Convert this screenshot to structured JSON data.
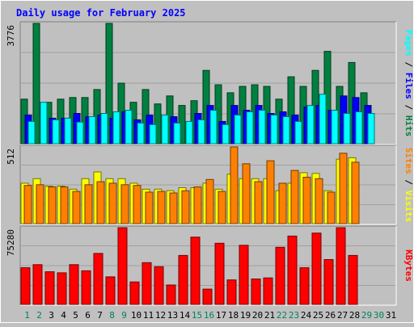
{
  "chart_data": [
    {
      "type": "bar",
      "title": "Daily usage for February 2025",
      "categories": [
        "1",
        "2",
        "3",
        "4",
        "5",
        "6",
        "7",
        "8",
        "9",
        "10",
        "11",
        "12",
        "13",
        "14",
        "15",
        "16",
        "17",
        "18",
        "19",
        "20",
        "21",
        "22",
        "23",
        "24",
        "25",
        "26",
        "27",
        "28",
        "29",
        "30",
        "31"
      ],
      "weekend_days": [
        "1",
        "2",
        "8",
        "9",
        "15",
        "16",
        "22",
        "23",
        "29",
        "30"
      ],
      "ymax_label": "3776",
      "ylim": [
        0,
        3776
      ],
      "right_label_parts": [
        "Pages",
        "Files",
        "Hits"
      ],
      "right_label_separator": " / ",
      "series": [
        {
          "name": "Hits",
          "color": "#008040",
          "values": [
            1400,
            3776,
            1300,
            1400,
            1450,
            1450,
            1700,
            3776,
            1900,
            1300,
            1700,
            1250,
            1500,
            1200,
            1350,
            2300,
            1850,
            1600,
            1800,
            1850,
            1800,
            1400,
            2100,
            1800,
            2300,
            2900,
            1800,
            2550,
            1600,
            0,
            0
          ]
        },
        {
          "name": "Files",
          "color": "#0000ff",
          "values": [
            900,
            0,
            800,
            800,
            950,
            850,
            900,
            800,
            1000,
            750,
            900,
            0,
            850,
            0,
            950,
            1200,
            700,
            1200,
            1050,
            1200,
            950,
            1000,
            900,
            1150,
            1200,
            1050,
            1500,
            1450,
            1200,
            0,
            0
          ]
        },
        {
          "name": "Pages",
          "color": "#00ffff",
          "values": [
            700,
            1300,
            750,
            800,
            680,
            850,
            950,
            1000,
            1050,
            650,
            600,
            900,
            650,
            700,
            750,
            1050,
            600,
            900,
            1000,
            1050,
            900,
            850,
            700,
            1200,
            1550,
            1050,
            950,
            1000,
            950,
            0,
            0
          ]
        }
      ]
    },
    {
      "type": "bar",
      "ymax_label": "512",
      "ylim": [
        0,
        512
      ],
      "right_label_parts": [
        "Sites",
        "Visits"
      ],
      "right_label_separator": " / ",
      "series": [
        {
          "name": "Visits",
          "color": "#ffff00",
          "values": [
            270,
            300,
            250,
            250,
            230,
            300,
            345,
            300,
            300,
            270,
            230,
            230,
            220,
            240,
            240,
            270,
            230,
            330,
            300,
            300,
            300,
            220,
            270,
            340,
            335,
            220,
            430,
            440,
            0,
            0,
            0
          ]
        },
        {
          "name": "Sites",
          "color": "#ff8000",
          "values": [
            255,
            260,
            245,
            245,
            215,
            260,
            280,
            270,
            260,
            255,
            210,
            215,
            205,
            220,
            245,
            295,
            215,
            512,
            400,
            280,
            420,
            270,
            355,
            310,
            300,
            210,
            470,
            410,
            0,
            0,
            0
          ]
        }
      ]
    },
    {
      "type": "bar",
      "ymax_label": "75280",
      "ylim": [
        0,
        75280
      ],
      "right_label_parts": [
        "KBytes"
      ],
      "right_label_separator": "",
      "series": [
        {
          "name": "KBytes",
          "color": "#ff0000",
          "values": [
            36000,
            39000,
            32000,
            31000,
            39000,
            33000,
            50000,
            27000,
            75280,
            22000,
            41000,
            37000,
            19000,
            48000,
            66000,
            15000,
            60000,
            24000,
            58000,
            25000,
            26000,
            56000,
            67000,
            36000,
            70000,
            44000,
            75280,
            48000,
            0,
            0,
            0
          ]
        }
      ]
    }
  ],
  "colors": {
    "title": "#0000ff",
    "background": "#c0c0c0",
    "plot_background": "#c0c0c0",
    "grid": "#a0a0a0",
    "weekday_label": "#000000",
    "weekend_label": "#00805c"
  }
}
